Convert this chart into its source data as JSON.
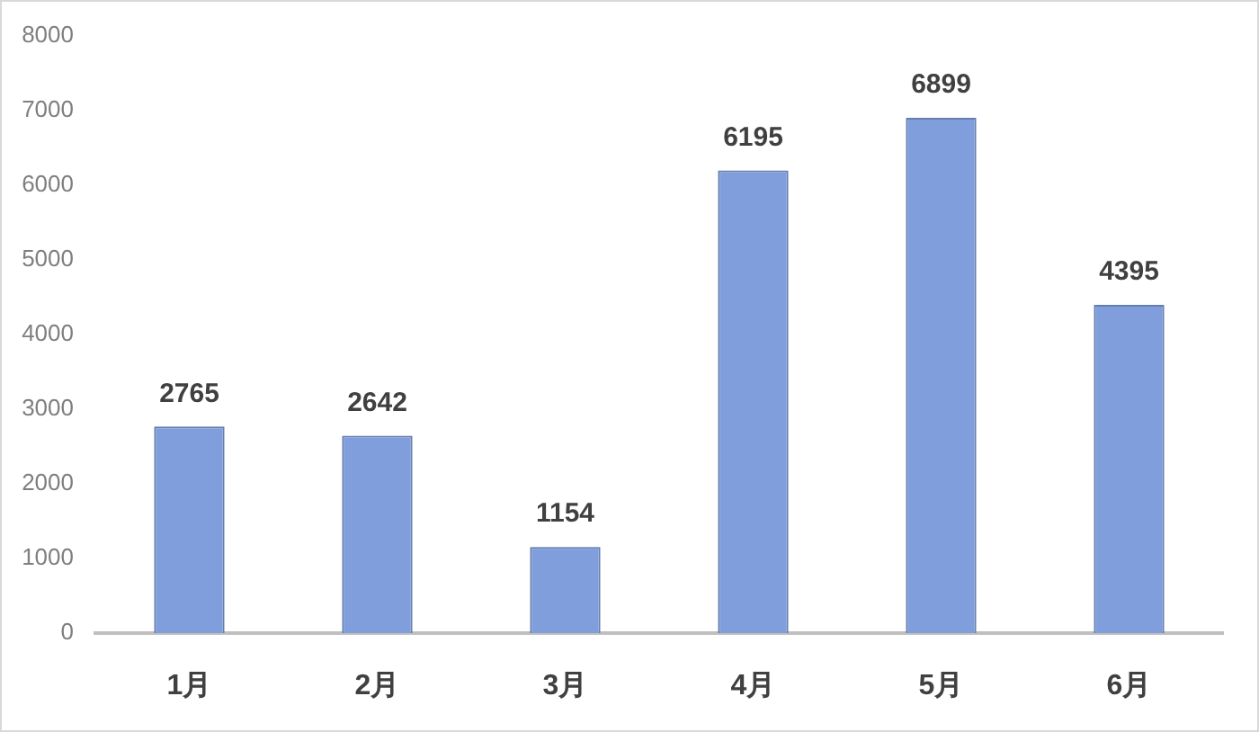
{
  "chart_data": {
    "type": "bar",
    "categories": [
      "1月",
      "2月",
      "3月",
      "4月",
      "5月",
      "6月"
    ],
    "values": [
      2765,
      2642,
      1154,
      6195,
      6899,
      4395
    ],
    "color": "#7f9edb",
    "ylim": [
      0,
      8000
    ],
    "yticks": [
      0,
      1000,
      2000,
      3000,
      4000,
      5000,
      6000,
      7000,
      8000
    ],
    "data_labels": true
  }
}
